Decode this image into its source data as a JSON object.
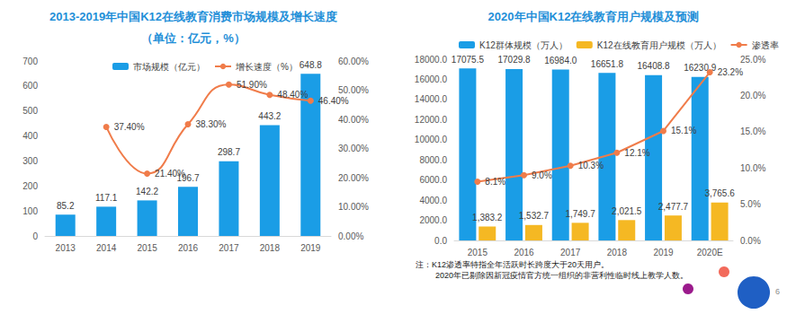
{
  "chart_data": [
    {
      "type": "bar",
      "title": "2013-2019年中国K12在线教育消费市场规模及增长速度",
      "subtitle": "（单位：亿元，%）",
      "categories": [
        "2013",
        "2014",
        "2015",
        "2016",
        "2017",
        "2018",
        "2019"
      ],
      "series": [
        {
          "name": "市场规模（亿元）",
          "type": "bar",
          "color": "#1a9de6",
          "values": [
            85.2,
            117.1,
            142.2,
            196.7,
            298.7,
            443.2,
            648.8
          ]
        },
        {
          "name": "增长速度（%）",
          "type": "line",
          "axis": "y2",
          "color": "#f07c4a",
          "marker": "circle",
          "line_style": "smooth",
          "values": [
            null,
            37.4,
            21.4,
            38.3,
            51.9,
            48.4,
            46.4
          ],
          "value_labels": [
            null,
            "37.40%",
            "21.40%",
            "38.30%",
            "51.90%",
            "48.40%",
            "46.40%"
          ]
        }
      ],
      "ylim": [
        0,
        700
      ],
      "yticks": [
        0,
        100,
        200,
        300,
        400,
        500,
        600,
        700
      ],
      "y2lim": [
        0,
        60
      ],
      "y2ticks": [
        {
          "value": 0,
          "label": "0.00%"
        },
        {
          "value": 10,
          "label": "10.00%"
        },
        {
          "value": 20,
          "label": "20.00%"
        },
        {
          "value": 30,
          "label": "30.00%"
        },
        {
          "value": 40,
          "label": "40.00%"
        },
        {
          "value": 50,
          "label": "50.00%"
        },
        {
          "value": 60,
          "label": "60.00%"
        }
      ],
      "grid": false,
      "legend": "top",
      "data_labels": true
    },
    {
      "type": "bar",
      "title": "2020年中国K12在线教育用户规模及预测",
      "categories": [
        "2015",
        "2016",
        "2017",
        "2018",
        "2019",
        "2020E"
      ],
      "series": [
        {
          "name": "K12群体规模（万人）",
          "type": "bar",
          "color": "#1a9de6",
          "values": [
            17075.5,
            17029.8,
            16984.0,
            16651.8,
            16408.8,
            16230.9
          ],
          "value_labels": [
            "17075.5",
            "17029.8",
            "16984.0",
            "16651.8",
            "16408.8",
            "16230.9"
          ]
        },
        {
          "name": "K12在线教育用户规模（万人）",
          "type": "bar",
          "color": "#f5b823",
          "values": [
            1383.2,
            1532.7,
            1749.7,
            2021.5,
            2477.7,
            3765.6
          ],
          "value_labels": [
            "1,383.2",
            "1,532.7",
            "1,749.7",
            "2,021.5",
            "2,477.7",
            "3,765.6"
          ]
        },
        {
          "name": "渗透率",
          "type": "line",
          "axis": "y2",
          "color": "#f07c4a",
          "marker": "circle",
          "line_style": "solid",
          "values": [
            8.1,
            9.0,
            10.3,
            12.1,
            15.1,
            23.2
          ],
          "value_labels": [
            "8.1%",
            "9.0%",
            "10.3%",
            "12.1%",
            "15.1%",
            "23.2%"
          ]
        }
      ],
      "ylim": [
        0,
        18000
      ],
      "yticks": [
        {
          "value": 0,
          "label": "0.0"
        },
        {
          "value": 2000,
          "label": "2000.0"
        },
        {
          "value": 4000,
          "label": "4000.0"
        },
        {
          "value": 6000,
          "label": "6000.0"
        },
        {
          "value": 8000,
          "label": "8000.0"
        },
        {
          "value": 10000,
          "label": "10000.0"
        },
        {
          "value": 12000,
          "label": "12000.0"
        },
        {
          "value": 14000,
          "label": "14000.0"
        },
        {
          "value": 16000,
          "label": "16000.0"
        },
        {
          "value": 18000,
          "label": "18000.0"
        }
      ],
      "y2lim": [
        0,
        25
      ],
      "y2ticks": [
        {
          "value": 0,
          "label": "0.0%"
        },
        {
          "value": 5,
          "label": "5.0%"
        },
        {
          "value": 10,
          "label": "10.0%"
        },
        {
          "value": 15,
          "label": "15.0%"
        },
        {
          "value": 20,
          "label": "20.0%"
        },
        {
          "value": 25,
          "label": "25.0%"
        }
      ],
      "grid": false,
      "legend": "top",
      "data_labels": true
    }
  ],
  "notes": [
    "注：K12渗透率特指全年活跃时长跨度大于20天用户。",
    "2020年已剔除因新冠疫情官方统一组织的非营利性临时线上教学人数。"
  ],
  "page_number": "6"
}
